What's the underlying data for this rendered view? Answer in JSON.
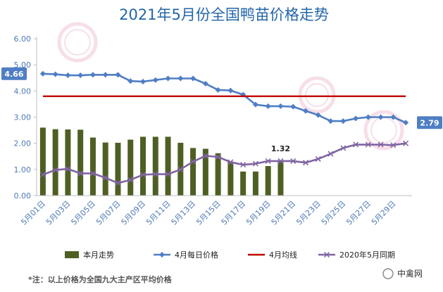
{
  "chart_data": {
    "type": "bar",
    "title": "2021年5月份全国鸭苗价格走势",
    "ylim": [
      0,
      6
    ],
    "yticks": [
      "0.00",
      "1.00",
      "2.00",
      "3.00",
      "4.00",
      "5.00",
      "6.00"
    ],
    "grid": false,
    "legend_position": "bottom",
    "x_tick_labels": [
      "5月01日",
      "5月03日",
      "5月05日",
      "5月07日",
      "5月09日",
      "5月11日",
      "5月13日",
      "5月15日",
      "5月17日",
      "5月19日",
      "5月21日",
      "5月23日",
      "5月25日",
      "5月27日",
      "5月29日"
    ],
    "days": [
      1,
      2,
      3,
      4,
      5,
      6,
      7,
      8,
      9,
      10,
      11,
      12,
      13,
      14,
      15,
      16,
      17,
      18,
      19,
      20,
      21,
      22,
      23,
      24,
      25,
      26,
      27,
      28,
      29,
      30
    ],
    "series": [
      {
        "name": "本月走势",
        "type": "bar",
        "color": "#4e5f23",
        "values": [
          2.6,
          2.54,
          2.53,
          2.52,
          2.22,
          2.03,
          2.02,
          2.14,
          2.25,
          2.25,
          2.25,
          2.02,
          1.82,
          1.79,
          1.62,
          1.3,
          0.92,
          0.92,
          1.13,
          1.32
        ]
      },
      {
        "name": "4月每日价格",
        "type": "line",
        "color": "#4f7ec4",
        "marker": "diamond",
        "values": [
          4.66,
          4.64,
          4.6,
          4.6,
          4.62,
          4.62,
          4.62,
          4.38,
          4.36,
          4.42,
          4.48,
          4.48,
          4.48,
          4.28,
          4.04,
          4.02,
          3.86,
          3.48,
          3.42,
          3.42,
          3.4,
          3.24,
          3.08,
          2.85,
          2.85,
          2.95,
          3.0,
          3.0,
          3.0,
          2.79
        ]
      },
      {
        "name": "4月均线",
        "type": "line",
        "color": "#c00000",
        "values": [
          3.8,
          3.8,
          3.8,
          3.8,
          3.8,
          3.8,
          3.8,
          3.8,
          3.8,
          3.8,
          3.8,
          3.8,
          3.8,
          3.8,
          3.8,
          3.8,
          3.8,
          3.8,
          3.8,
          3.8,
          3.8,
          3.8,
          3.8,
          3.8,
          3.8,
          3.8,
          3.8,
          3.8,
          3.8,
          3.8
        ]
      },
      {
        "name": "2020年5月同期",
        "type": "line",
        "color": "#8064a2",
        "marker": "x",
        "values": [
          0.8,
          0.98,
          1.02,
          0.85,
          0.85,
          0.68,
          0.48,
          0.6,
          0.8,
          0.82,
          0.82,
          1.0,
          1.3,
          1.52,
          1.48,
          1.28,
          1.18,
          1.22,
          1.32,
          1.32,
          1.32,
          1.26,
          1.4,
          1.6,
          1.82,
          1.95,
          1.95,
          1.95,
          1.93,
          2.0
        ]
      }
    ],
    "annotations": [
      {
        "text": "4.66"
      },
      {
        "text": "2.79"
      },
      {
        "text": "1.32"
      }
    ]
  },
  "note": "*注：以上价格为全国九大主产区平均价格",
  "brand": "中禽网",
  "watermark": "中禽网"
}
